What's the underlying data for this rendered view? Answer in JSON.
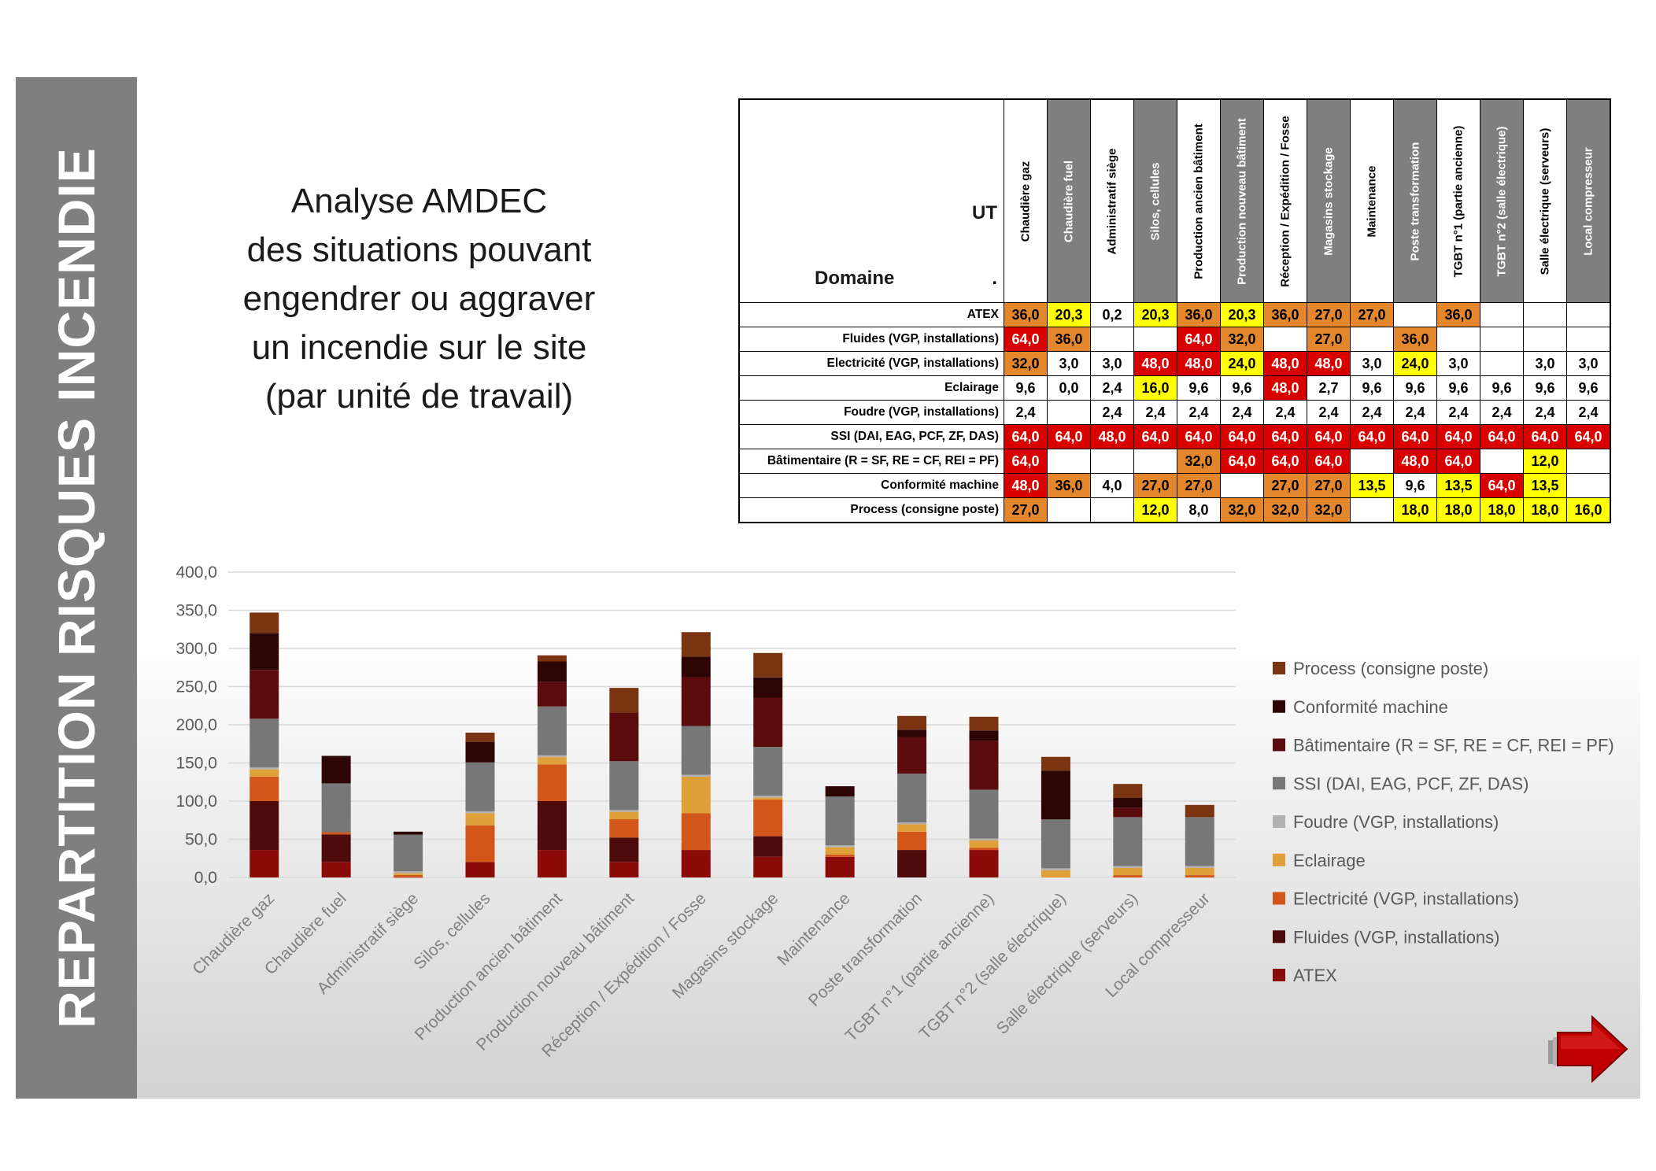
{
  "side_title": "REPARTITION RISQUES INCENDIE",
  "intro_lines": [
    "Analyse AMDEC",
    "des situations pouvant",
    "engendrer ou aggraver",
    "un incendie sur le site",
    "(par unité de travail)"
  ],
  "table": {
    "corner_ut": "UT",
    "corner_domain": "Domaine",
    "corner_dot": ".",
    "columns": [
      "Chaudière gaz",
      "Chaudière fuel",
      "Administratif siège",
      "Silos, cellules",
      "Production ancien bâtiment",
      "Production nouveau bâtiment",
      "Réception / Expédition / Fosse",
      "Magasins stockage",
      "Maintenance",
      "Poste transformation",
      "TGBT n°1 (partie ancienne)",
      "TGBT n°2 (salle électrique)",
      "Salle électrique (serveurs)",
      "Local compresseur"
    ],
    "rows": [
      {
        "label": "ATEX",
        "cells": [
          "36,0",
          "20,3",
          "0,2",
          "20,3",
          "36,0",
          "20,3",
          "36,0",
          "27,0",
          "27,0",
          "",
          "36,0",
          "",
          "",
          ""
        ]
      },
      {
        "label": "Fluides (VGP, installations)",
        "cells": [
          "64,0",
          "36,0",
          "",
          "",
          "64,0",
          "32,0",
          "",
          "27,0",
          "",
          "36,0",
          "",
          "",
          "",
          ""
        ]
      },
      {
        "label": "Electricité (VGP, installations)",
        "cells": [
          "32,0",
          "3,0",
          "3,0",
          "48,0",
          "48,0",
          "24,0",
          "48,0",
          "48,0",
          "3,0",
          "24,0",
          "3,0",
          "",
          "3,0",
          "3,0"
        ]
      },
      {
        "label": "Eclairage",
        "cells": [
          "9,6",
          "0,0",
          "2,4",
          "16,0",
          "9,6",
          "9,6",
          "48,0",
          "2,7",
          "9,6",
          "9,6",
          "9,6",
          "9,6",
          "9,6",
          "9,6"
        ]
      },
      {
        "label": "Foudre (VGP, installations)",
        "cells": [
          "2,4",
          "",
          "2,4",
          "2,4",
          "2,4",
          "2,4",
          "2,4",
          "2,4",
          "2,4",
          "2,4",
          "2,4",
          "2,4",
          "2,4",
          "2,4"
        ]
      },
      {
        "label": "SSI (DAI, EAG, PCF, ZF, DAS)",
        "cells": [
          "64,0",
          "64,0",
          "48,0",
          "64,0",
          "64,0",
          "64,0",
          "64,0",
          "64,0",
          "64,0",
          "64,0",
          "64,0",
          "64,0",
          "64,0",
          "64,0"
        ]
      },
      {
        "label": "Bâtimentaire (R = SF, RE = CF, REI = PF)",
        "cells": [
          "64,0",
          "",
          "",
          "",
          "32,0",
          "64,0",
          "64,0",
          "64,0",
          "",
          "48,0",
          "64,0",
          "",
          "12,0",
          ""
        ]
      },
      {
        "label": "Conformité machine",
        "cells": [
          "48,0",
          "36,0",
          "4,0",
          "27,0",
          "27,0",
          "",
          "27,0",
          "27,0",
          "13,5",
          "9,6",
          "13,5",
          "64,0",
          "13,5",
          ""
        ]
      },
      {
        "label": "Process (consigne poste)",
        "cells": [
          "27,0",
          "",
          "",
          "12,0",
          "8,0",
          "32,0",
          "32,0",
          "32,0",
          "",
          "18,0",
          "18,0",
          "18,0",
          "18,0",
          "16,0"
        ]
      }
    ]
  },
  "chart_data": {
    "type": "bar",
    "stacked": true,
    "categories": [
      "Chaudière gaz",
      "Chaudière fuel",
      "Administratif siège",
      "Silos, cellules",
      "Production ancien bâtiment",
      "Production nouveau bâtiment",
      "Réception / Expédition / Fosse",
      "Magasins stockage",
      "Maintenance",
      "Poste transformation",
      "TGBT n°1 (partie ancienne)",
      "TGBT n°2 (salle électrique)",
      "Salle électrique (serveurs)",
      "Local compresseur"
    ],
    "series": [
      {
        "name": "ATEX",
        "color": "#8b0a0a",
        "values": [
          36.0,
          20.3,
          0.2,
          20.3,
          36.0,
          20.3,
          36.0,
          27.0,
          27.0,
          0,
          36.0,
          0,
          0,
          0
        ]
      },
      {
        "name": "Fluides (VGP, installations)",
        "color": "#4d0b0b",
        "values": [
          64.0,
          36.0,
          0,
          0,
          64.0,
          32.0,
          0,
          27.0,
          0,
          36.0,
          0,
          0,
          0,
          0
        ]
      },
      {
        "name": "Electricité (VGP, installations)",
        "color": "#d2551a",
        "values": [
          32.0,
          3.0,
          3.0,
          48.0,
          48.0,
          24.0,
          48.0,
          48.0,
          3.0,
          24.0,
          3.0,
          0,
          3.0,
          3.0
        ]
      },
      {
        "name": "Eclairage",
        "color": "#dfa03a",
        "values": [
          9.6,
          0,
          2.4,
          16.0,
          9.6,
          9.6,
          48.0,
          2.7,
          9.6,
          9.6,
          9.6,
          9.6,
          9.6,
          9.6
        ]
      },
      {
        "name": "Foudre (VGP, installations)",
        "color": "#b2b2b2",
        "values": [
          2.4,
          0,
          2.4,
          2.4,
          2.4,
          2.4,
          2.4,
          2.4,
          2.4,
          2.4,
          2.4,
          2.4,
          2.4,
          2.4
        ]
      },
      {
        "name": "SSI (DAI, EAG, PCF, ZF, DAS)",
        "color": "#777777",
        "values": [
          64.0,
          64.0,
          48.0,
          64.0,
          64.0,
          64.0,
          64.0,
          64.0,
          64.0,
          64.0,
          64.0,
          64.0,
          64.0,
          64.0
        ]
      },
      {
        "name": "Bâtimentaire (R = SF, RE = CF, REI = PF)",
        "color": "#5c0c0c",
        "values": [
          64.0,
          0,
          0,
          0,
          32.0,
          64.0,
          64.0,
          64.0,
          0,
          48.0,
          64.0,
          0,
          12.0,
          0
        ]
      },
      {
        "name": "Conformité machine",
        "color": "#2e0505",
        "values": [
          48.0,
          36.0,
          4.0,
          27.0,
          27.0,
          0,
          27.0,
          27.0,
          13.5,
          9.6,
          13.5,
          64.0,
          13.5,
          0
        ]
      },
      {
        "name": "Process (consigne poste)",
        "color": "#7a3412",
        "values": [
          27.0,
          0,
          0,
          12.0,
          8.0,
          32.0,
          32.0,
          32.0,
          0,
          18.0,
          18.0,
          18.0,
          18.0,
          16.0
        ]
      }
    ],
    "y_ticks": [
      "0,0",
      "50,0",
      "100,0",
      "150,0",
      "200,0",
      "250,0",
      "300,0",
      "350,0",
      "400,0"
    ],
    "ylim": [
      0,
      400
    ],
    "grid": true,
    "legend_position": "right",
    "xlabel": "",
    "ylabel": ""
  },
  "colors": {
    "sidebar": "#7f7f7f",
    "level_yellow": "#ffff00",
    "level_orange": "#e4862b",
    "level_red": "#d90000",
    "arrow": "#c00000"
  }
}
